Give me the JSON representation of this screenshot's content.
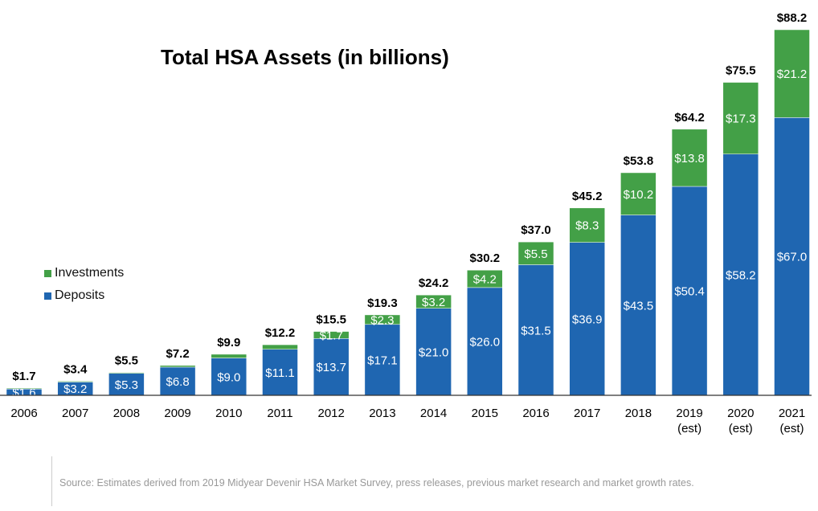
{
  "chart_data": {
    "type": "bar",
    "stacked": true,
    "title": "Total HSA Assets (in billions)",
    "categories": [
      "2006",
      "2007",
      "2008",
      "2009",
      "2010",
      "2011",
      "2012",
      "2013",
      "2014",
      "2015",
      "2016",
      "2017",
      "2018",
      "2019 (est)",
      "2020 (est)",
      "2021 (est)"
    ],
    "series": [
      {
        "name": "Deposits",
        "color": "#1f66b1",
        "values": [
          1.6,
          3.2,
          5.3,
          6.8,
          9.0,
          11.1,
          13.7,
          17.1,
          21.0,
          26.0,
          31.5,
          36.9,
          43.5,
          50.4,
          58.2,
          67.0
        ],
        "labels": [
          "$1.6",
          "$3.2",
          "$5.3",
          "$6.8",
          "$9.0",
          "$11.1",
          "$13.7",
          "$17.1",
          "$21.0",
          "$26.0",
          "$31.5",
          "$36.9",
          "$43.5",
          "$50.4",
          "$58.2",
          "$67.0"
        ]
      },
      {
        "name": "Investments",
        "color": "#43a047",
        "values": [
          0.1,
          0.2,
          0.2,
          0.4,
          0.9,
          1.1,
          1.7,
          2.3,
          3.2,
          4.2,
          5.5,
          8.3,
          10.2,
          13.8,
          17.3,
          21.2
        ],
        "labels": [
          "",
          "",
          "",
          "",
          "",
          "",
          "$1.7",
          "$2.3",
          "$3.2",
          "$4.2",
          "$5.5",
          "$8.3",
          "$10.2",
          "$13.8",
          "$17.3",
          "$21.2"
        ]
      }
    ],
    "totals": [
      "$1.7",
      "$3.4",
      "$5.5",
      "$7.2",
      "$9.9",
      "$12.2",
      "$15.5",
      "$19.3",
      "$24.2",
      "$30.2",
      "$37.0",
      "$45.2",
      "$53.8",
      "$64.2",
      "$75.5",
      "$88.2"
    ],
    "ylim": [
      0,
      88.2
    ],
    "grid": false,
    "legend": "left-middle",
    "legend_order": [
      "Investments",
      "Deposits"
    ],
    "xlabel": "",
    "ylabel": ""
  },
  "source": "Source: Estimates derived from 2019 Midyear Devenir HSA Market Survey, press releases, previous market research and market growth rates."
}
